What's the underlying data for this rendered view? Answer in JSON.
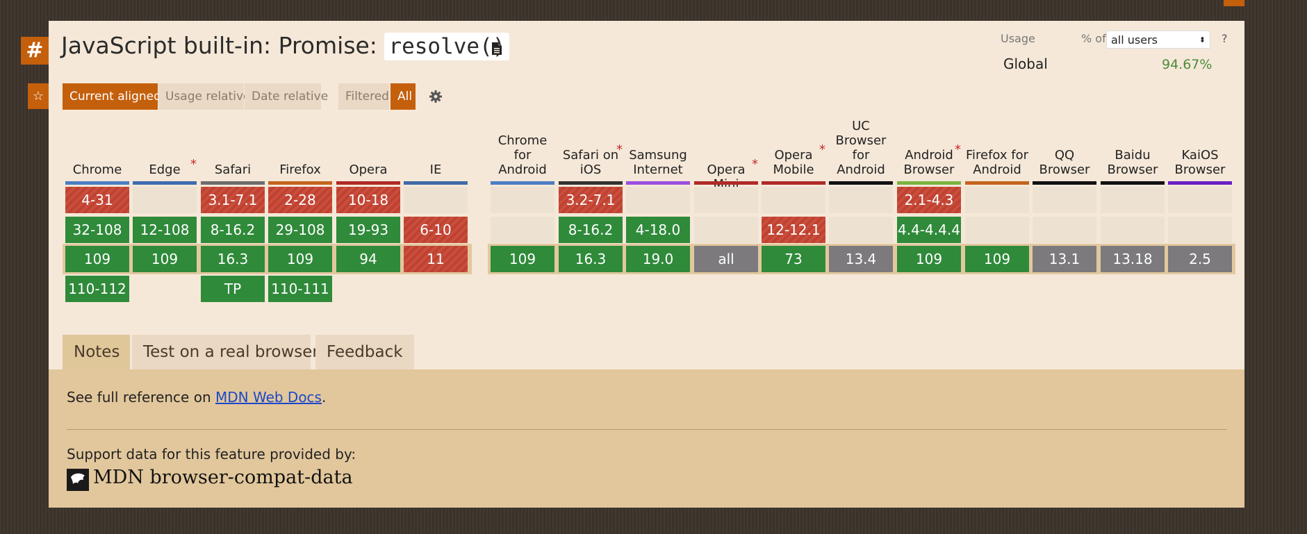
{
  "page": {
    "title_prefix": "JavaScript built-in: Promise:",
    "title_code": "resolve()",
    "hash_symbol": "#",
    "star_symbol": "☆"
  },
  "usage": {
    "label": "Usage",
    "pct_of": "% of",
    "users_select": "all users",
    "help": "?",
    "global_label": "Global",
    "global_value": "94.67%"
  },
  "view_buttons": [
    {
      "label": "Current aligned",
      "active": true
    },
    {
      "label": "Usage relative",
      "active": false
    },
    {
      "label": "Date relative",
      "active": false
    },
    {
      "label": "Filtered",
      "active": false
    },
    {
      "label": "All",
      "active": true
    }
  ],
  "browsers": [
    {
      "name": "Chrome",
      "ast": false,
      "bar": "#4b7ec3",
      "cells": [
        {
          "v": "4-31",
          "s": "n"
        },
        {
          "v": "32-108",
          "s": "y"
        },
        {
          "v": "109",
          "s": "y"
        },
        {
          "v": "110-112",
          "s": "y"
        }
      ]
    },
    {
      "name": "Edge",
      "ast": true,
      "bar": "#3e6bb0",
      "cells": [
        {
          "v": "",
          "s": "e"
        },
        {
          "v": "12-108",
          "s": "y"
        },
        {
          "v": "109",
          "s": "y"
        },
        null
      ]
    },
    {
      "name": "Safari",
      "ast": false,
      "bar": "#6d6d6d",
      "cells": [
        {
          "v": "3.1-7.1",
          "s": "n"
        },
        {
          "v": "8-16.2",
          "s": "y"
        },
        {
          "v": "16.3",
          "s": "y"
        },
        {
          "v": "TP",
          "s": "y"
        }
      ]
    },
    {
      "name": "Firefox",
      "ast": false,
      "bar": "#c4641e",
      "cells": [
        {
          "v": "2-28",
          "s": "n"
        },
        {
          "v": "29-108",
          "s": "y"
        },
        {
          "v": "109",
          "s": "y"
        },
        {
          "v": "110-111",
          "s": "y"
        }
      ]
    },
    {
      "name": "Opera",
      "ast": false,
      "bar": "#b02a28",
      "cells": [
        {
          "v": "10-18",
          "s": "n"
        },
        {
          "v": "19-93",
          "s": "y"
        },
        {
          "v": "94",
          "s": "y"
        },
        null
      ]
    },
    {
      "name": "IE",
      "ast": false,
      "bar": "#3f6aa6",
      "cells": [
        {
          "v": "",
          "s": "e"
        },
        {
          "v": "6-10",
          "s": "n"
        },
        {
          "v": "11",
          "s": "n"
        },
        null
      ]
    },
    {
      "name": "Chrome for Android",
      "ast": false,
      "bar": "#4b7ec3",
      "cells": [
        {
          "v": "",
          "s": "e"
        },
        {
          "v": "",
          "s": "e"
        },
        {
          "v": "109",
          "s": "y"
        },
        null
      ]
    },
    {
      "name": "Safari on iOS",
      "ast": true,
      "bar": "#333333",
      "cells": [
        {
          "v": "3.2-7.1",
          "s": "n"
        },
        {
          "v": "8-16.2",
          "s": "y"
        },
        {
          "v": "16.3",
          "s": "y"
        },
        null
      ]
    },
    {
      "name": "Samsung Internet",
      "ast": false,
      "bar": "#9a4fe0",
      "cells": [
        {
          "v": "",
          "s": "e"
        },
        {
          "v": "4-18.0",
          "s": "y"
        },
        {
          "v": "19.0",
          "s": "y"
        },
        null
      ]
    },
    {
      "name": "Opera Mini",
      "ast": true,
      "bar": "#b02a28",
      "cells": [
        {
          "v": "",
          "s": "e"
        },
        {
          "v": "",
          "s": "e"
        },
        {
          "v": "all",
          "s": "u"
        },
        null
      ]
    },
    {
      "name": "Opera Mobile",
      "ast": true,
      "bar": "#b02a28",
      "cells": [
        {
          "v": "",
          "s": "e"
        },
        {
          "v": "12-12.1",
          "s": "n"
        },
        {
          "v": "73",
          "s": "y"
        },
        null
      ]
    },
    {
      "name": "UC Browser for Android",
      "ast": false,
      "bar": "#111111",
      "cells": [
        {
          "v": "",
          "s": "e"
        },
        {
          "v": "",
          "s": "e"
        },
        {
          "v": "13.4",
          "s": "u"
        },
        null
      ]
    },
    {
      "name": "Android Browser",
      "ast": true,
      "bar": "#7ab340",
      "cells": [
        {
          "v": "2.1-4.3",
          "s": "n"
        },
        {
          "v": "4.4-4.4.4",
          "s": "y"
        },
        {
          "v": "109",
          "s": "y"
        },
        null
      ]
    },
    {
      "name": "Firefox for Android",
      "ast": false,
      "bar": "#c4641e",
      "cells": [
        {
          "v": "",
          "s": "e"
        },
        {
          "v": "",
          "s": "e"
        },
        {
          "v": "109",
          "s": "y"
        },
        null
      ]
    },
    {
      "name": "QQ Browser",
      "ast": false,
      "bar": "#111111",
      "cells": [
        {
          "v": "",
          "s": "e"
        },
        {
          "v": "",
          "s": "e"
        },
        {
          "v": "13.1",
          "s": "u"
        },
        null
      ]
    },
    {
      "name": "Baidu Browser",
      "ast": false,
      "bar": "#111111",
      "cells": [
        {
          "v": "",
          "s": "e"
        },
        {
          "v": "",
          "s": "e"
        },
        {
          "v": "13.18",
          "s": "u"
        },
        null
      ]
    },
    {
      "name": "KaiOS Browser",
      "ast": false,
      "bar": "#6a1fc4",
      "cells": [
        {
          "v": "",
          "s": "e"
        },
        {
          "v": "",
          "s": "e"
        },
        {
          "v": "2.5",
          "s": "u"
        },
        null
      ]
    }
  ],
  "tabs": [
    {
      "label": "Notes",
      "active": true
    },
    {
      "label": "Test on a real browser",
      "active": false
    },
    {
      "label": "Feedback",
      "active": false
    }
  ],
  "notes": {
    "prefix": "See full reference on ",
    "link": "MDN Web Docs",
    "suffix": ".",
    "support_text": "Support data for this feature provided by:",
    "mdn_text": "MDN browser-compat-data"
  }
}
